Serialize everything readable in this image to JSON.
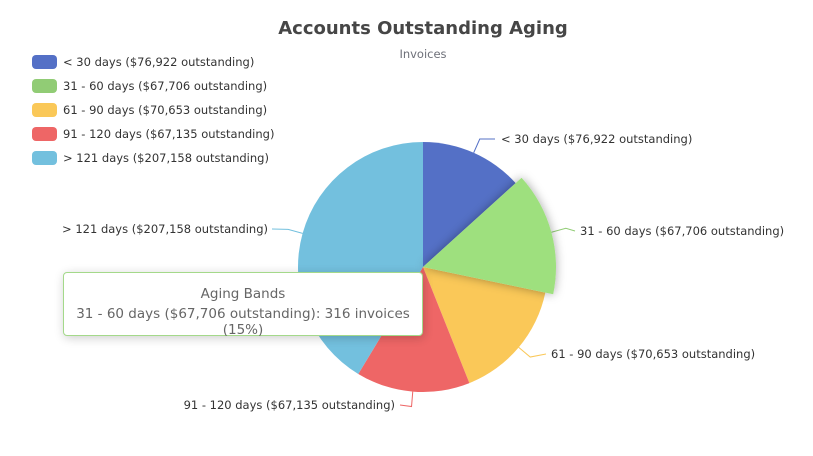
{
  "chart_data": {
    "type": "pie",
    "title": "Accounts Outstanding Aging",
    "subtitle": "Invoices",
    "series_name": "Aging Bands",
    "legend_position": "top-left",
    "slices": [
      {
        "label": "< 30 days ($76,922 outstanding)",
        "value": 280,
        "color": "#5470c6"
      },
      {
        "label": "31 - 60 days ($67,706 outstanding)",
        "value": 316,
        "color": "#91cc75"
      },
      {
        "label": "61 - 90 days ($70,653 outstanding)",
        "value": 330,
        "color": "#fac858"
      },
      {
        "label": "91 - 120 days ($67,135 outstanding)",
        "value": 310,
        "color": "#ee6666"
      },
      {
        "label": "> 121 days ($207,158 outstanding)",
        "value": 871,
        "color": "#73c0de"
      }
    ],
    "highlighted_index": 1,
    "tooltip": {
      "title": "Aging Bands",
      "body": "31 - 60 days ($67,706 outstanding): 316 invoices (15%)"
    }
  }
}
